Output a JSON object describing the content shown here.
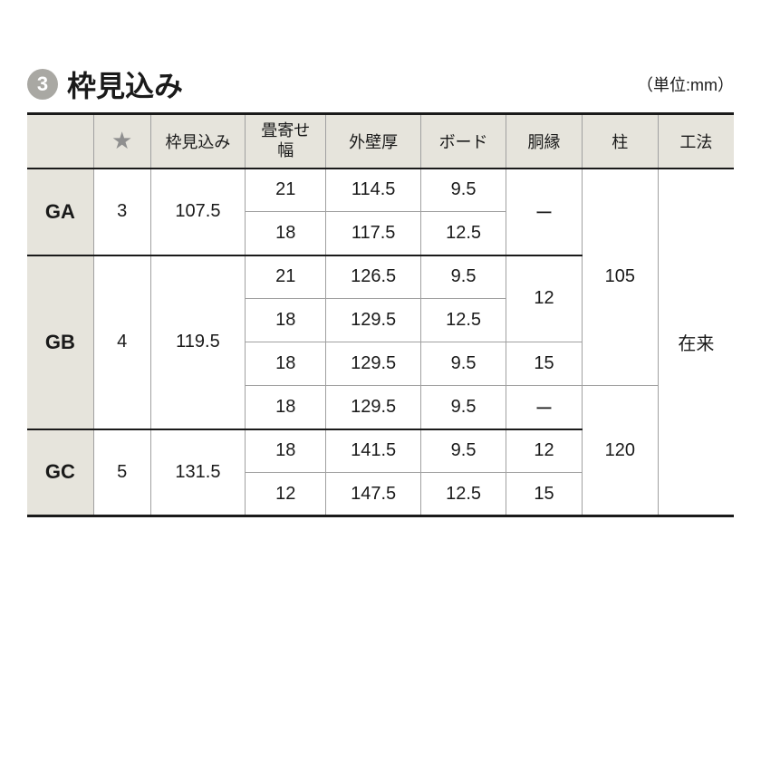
{
  "badge_number": "3",
  "title": "枠見込み",
  "unit_label": "（単位:mm）",
  "columns": {
    "blank": "",
    "star": "★",
    "wakumikomi": "枠見込み",
    "tatamiyose": "畳寄せ\n幅",
    "gaihekiatsu": "外壁厚",
    "board": "ボード",
    "doubuchi": "胴縁",
    "hashira": "柱",
    "kouhou": "工法"
  },
  "groups": [
    {
      "label": "GA",
      "star": "3",
      "wakumikomi": "107.5",
      "rows": [
        {
          "tatami": "21",
          "gaiheki": "114.5",
          "board": "9.5"
        },
        {
          "tatami": "18",
          "gaiheki": "117.5",
          "board": "12.5"
        }
      ],
      "doubuchi": [
        {
          "value": "ー",
          "span": 2
        }
      ]
    },
    {
      "label": "GB",
      "star": "4",
      "wakumikomi": "119.5",
      "rows": [
        {
          "tatami": "21",
          "gaiheki": "126.5",
          "board": "9.5"
        },
        {
          "tatami": "18",
          "gaiheki": "129.5",
          "board": "12.5"
        },
        {
          "tatami": "18",
          "gaiheki": "129.5",
          "board": "9.5"
        },
        {
          "tatami": "18",
          "gaiheki": "129.5",
          "board": "9.5"
        }
      ],
      "doubuchi": [
        {
          "value": "12",
          "span": 2
        },
        {
          "value": "15",
          "span": 1
        },
        {
          "value": "ー",
          "span": 1
        }
      ]
    },
    {
      "label": "GC",
      "star": "5",
      "wakumikomi": "131.5",
      "rows": [
        {
          "tatami": "18",
          "gaiheki": "141.5",
          "board": "9.5"
        },
        {
          "tatami": "12",
          "gaiheki": "147.5",
          "board": "12.5"
        }
      ],
      "doubuchi": [
        {
          "value": "12",
          "span": 1
        },
        {
          "value": "15",
          "span": 1
        }
      ]
    }
  ],
  "hashira": [
    {
      "value": "105",
      "span": 5
    },
    {
      "value": "120",
      "span": 3
    }
  ],
  "kouhou": {
    "value": "在来",
    "span": 8
  },
  "colors": {
    "header_bg": "#e6e4dc",
    "border_dark": "#1a1a1a",
    "border_light": "#a0a0a0",
    "badge_bg": "#a9a8a3",
    "text": "#1a1a1a"
  }
}
